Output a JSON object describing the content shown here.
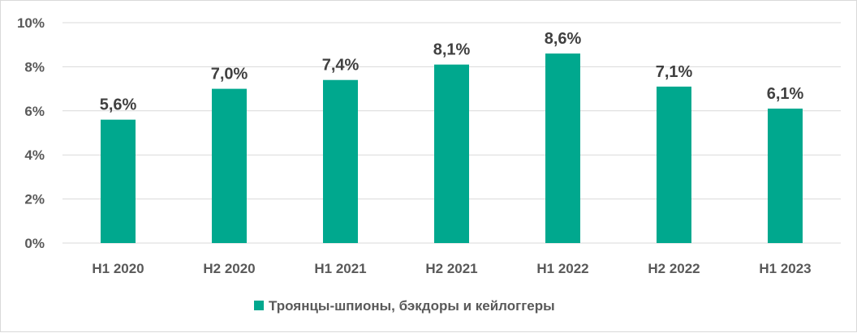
{
  "chart_data": {
    "type": "bar",
    "categories": [
      "H1 2020",
      "H2 2020",
      "H1 2021",
      "H2 2021",
      "H1 2022",
      "H2 2022",
      "H1 2023"
    ],
    "series": [
      {
        "name": "Троянцы-шпионы, бэкдоры и кейлоггеры",
        "values": [
          5.6,
          7.0,
          7.4,
          8.1,
          8.6,
          7.1,
          6.1
        ],
        "data_labels": [
          "5,6%",
          "7,0%",
          "7,4%",
          "8,1%",
          "8,6%",
          "7,1%",
          "6,1%"
        ],
        "color": "#00a88e"
      }
    ],
    "ylim": [
      0,
      10
    ],
    "yticks": [
      0,
      2,
      4,
      6,
      8,
      10
    ],
    "ytick_labels": [
      "0%",
      "2%",
      "4%",
      "6%",
      "8%",
      "10%"
    ],
    "grid": true,
    "legend": "bottom",
    "gridline_color": "#d9d9d9"
  }
}
